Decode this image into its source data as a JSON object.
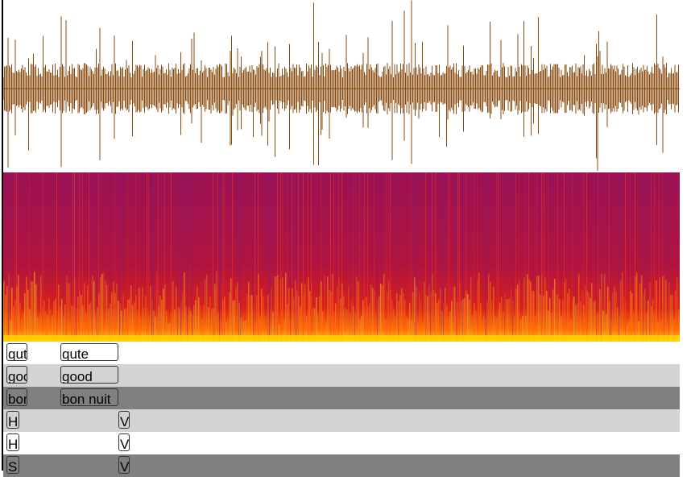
{
  "colors": {
    "waveform": "#8a4a0c",
    "spectrogram_base": "#a0105a",
    "tier_white": "#ffffff",
    "tier_light": "#d3d3d3",
    "tier_dark": "#808080"
  },
  "waveform": {
    "type": "audio-waveform",
    "color": "#8a4a0c"
  },
  "spectrogram": {
    "type": "spectrogram",
    "palette": [
      "#7a1e8c",
      "#c81030",
      "#ff4400",
      "#ffc400",
      "#ffff80"
    ]
  },
  "tiers": [
    {
      "shade": "white",
      "segments": [
        {
          "text": "qut"
        },
        {
          "text": "qute"
        }
      ]
    },
    {
      "shade": "light",
      "segments": [
        {
          "text": "goo"
        },
        {
          "text": "good"
        }
      ]
    },
    {
      "shade": "dark",
      "segments": [
        {
          "text": "bon"
        },
        {
          "text": "bon nuit"
        }
      ]
    },
    {
      "shade": "light",
      "segments": [
        {
          "text": "H"
        },
        {
          "text": "V"
        }
      ]
    },
    {
      "shade": "white",
      "segments": [
        {
          "text": "H"
        },
        {
          "text": "V"
        }
      ]
    },
    {
      "shade": "dark",
      "segments": [
        {
          "text": "S"
        },
        {
          "text": "V"
        }
      ]
    }
  ]
}
